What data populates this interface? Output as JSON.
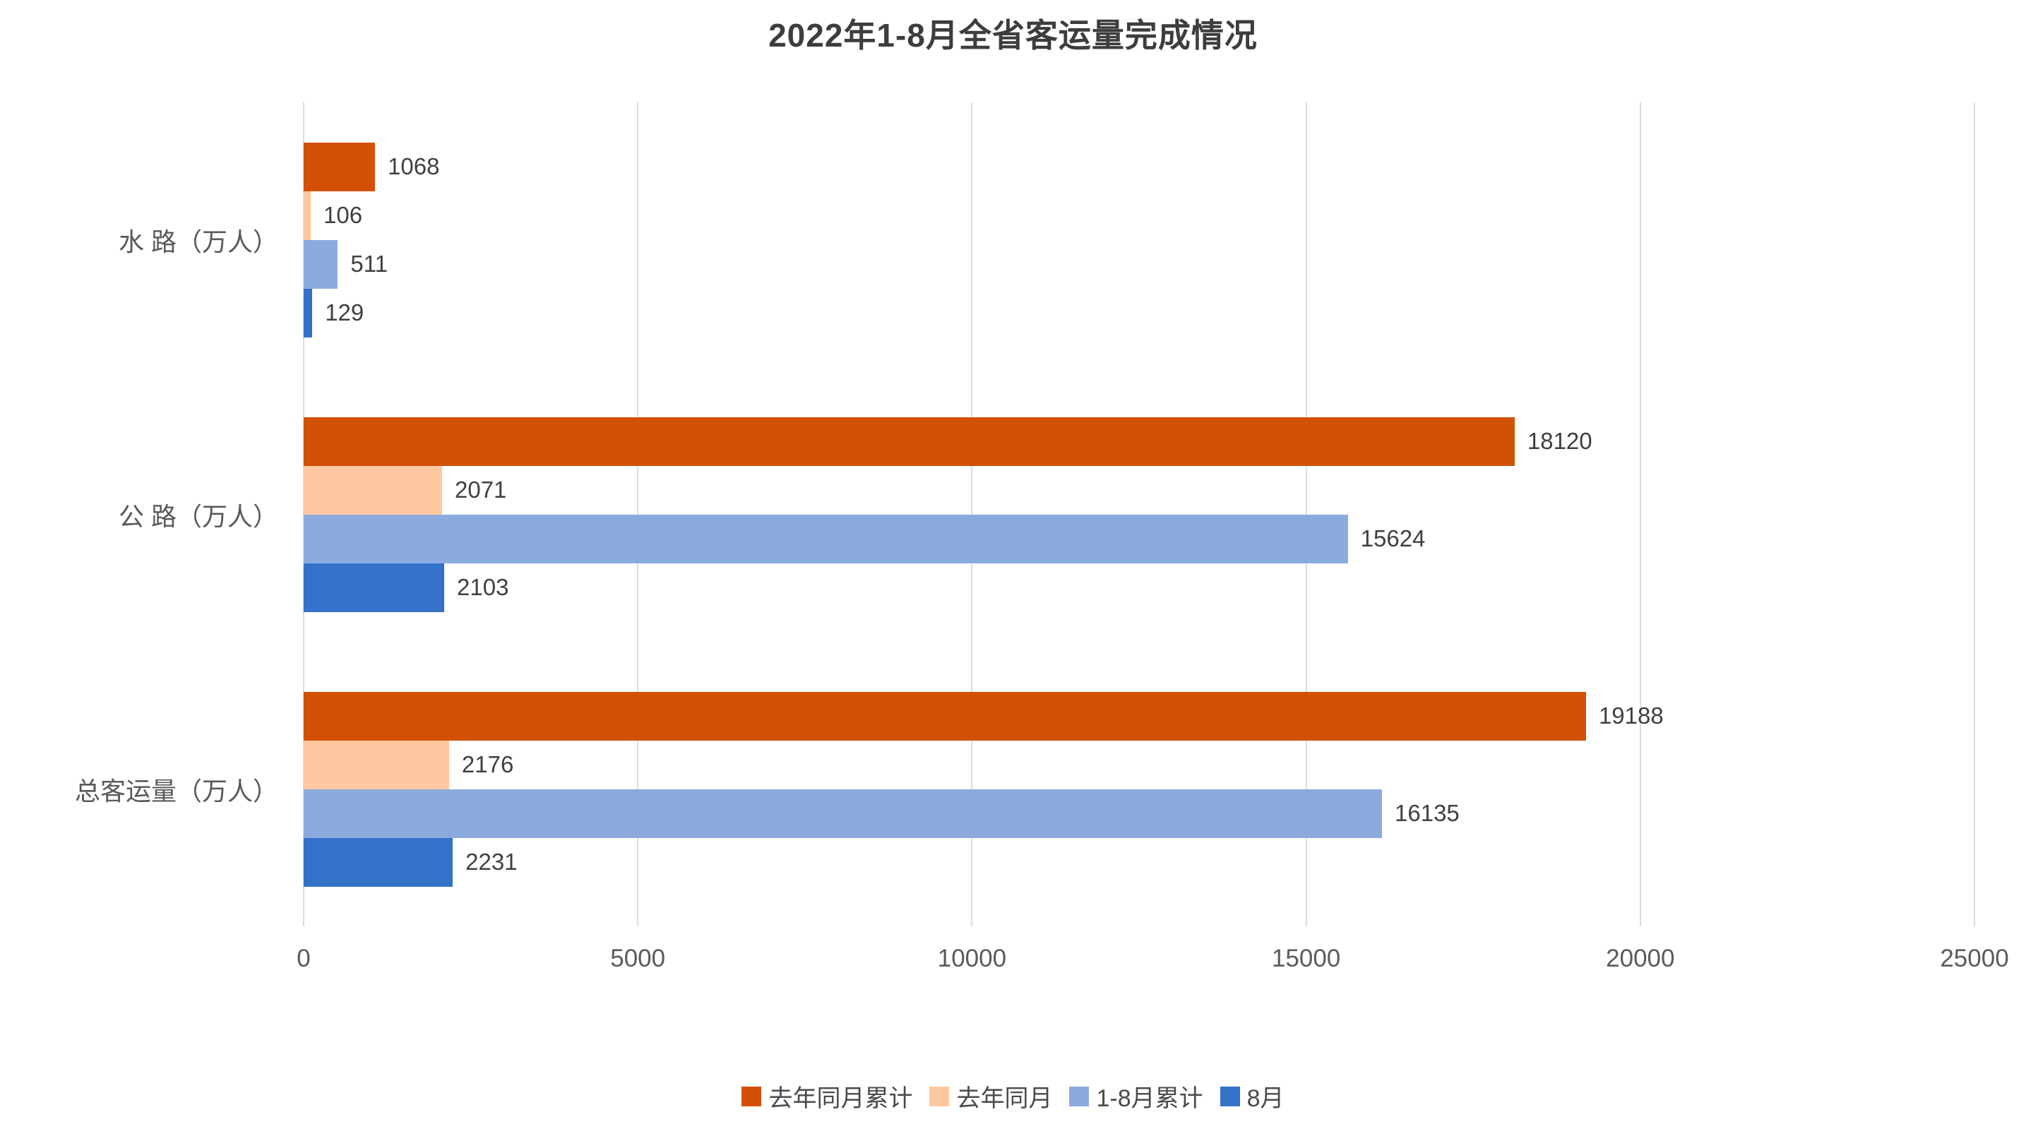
{
  "chart_data": {
    "type": "bar",
    "orientation": "horizontal",
    "title": "2022年1-8月全省客运量完成情况",
    "categories": [
      "水 路（万人）",
      "公 路（万人）",
      "总客运量（万人）"
    ],
    "series": [
      {
        "name": "去年同月累计",
        "color": "#d25106",
        "values": [
          1068,
          18120,
          19188
        ]
      },
      {
        "name": "去年同月",
        "color": "#ffc8a0",
        "values": [
          106,
          2071,
          2176
        ]
      },
      {
        "name": "1-8月累计",
        "color": "#8babdf",
        "values": [
          511,
          15624,
          16135
        ]
      },
      {
        "name": "8月",
        "color": "#3372c8",
        "values": [
          129,
          2103,
          2231
        ]
      }
    ],
    "x_ticks": [
      0,
      5000,
      10000,
      15000,
      20000,
      25000
    ],
    "xlim": [
      0,
      25000
    ],
    "grid": true,
    "gridline_color": "#dcdcdc",
    "legend_position": "bottom",
    "unit": "万人"
  }
}
